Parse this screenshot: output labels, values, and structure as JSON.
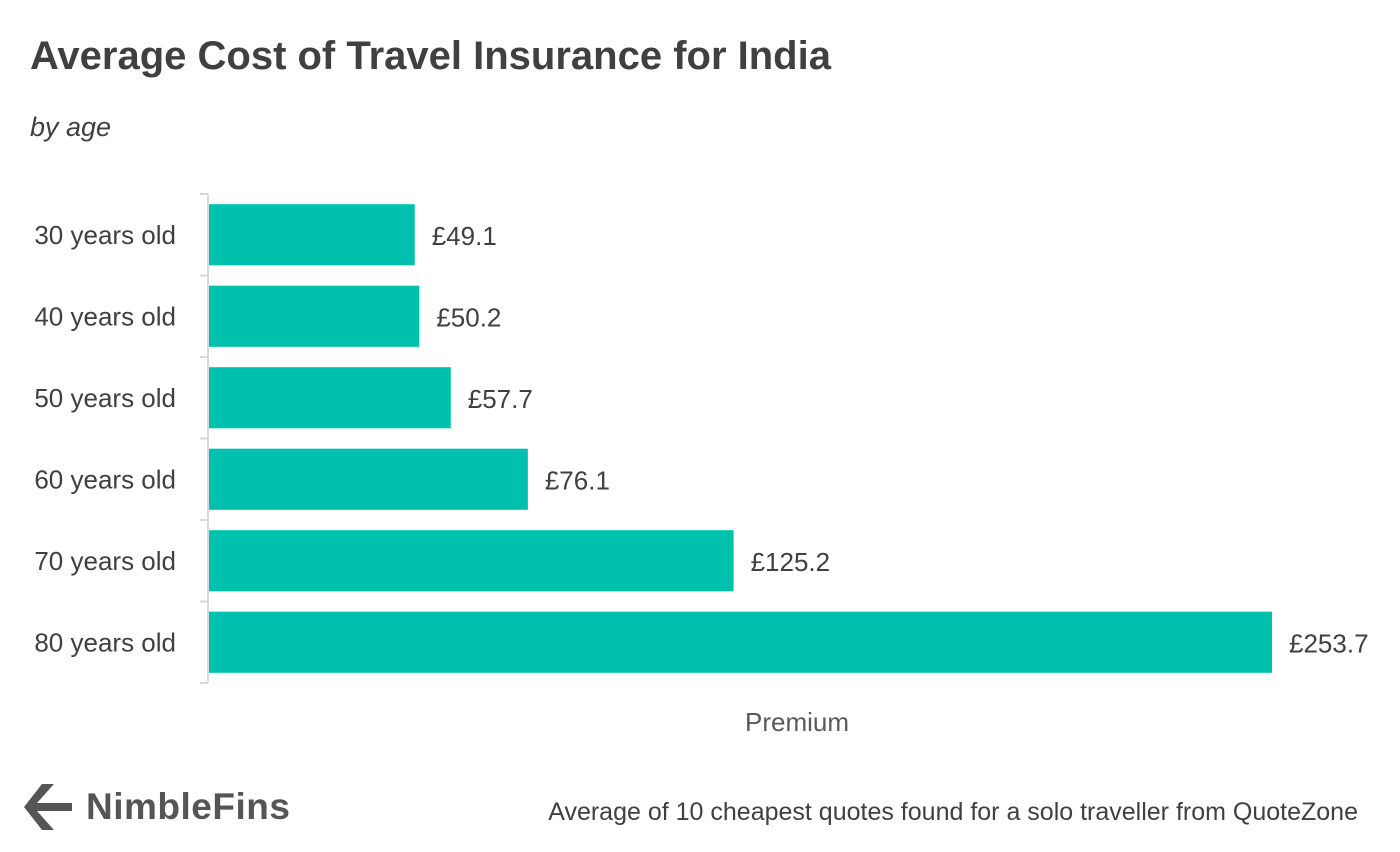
{
  "logo": {
    "brand_name": "NimbleFins",
    "icon": "chevron-left-icon"
  },
  "footnote": "Average of 10 cheapest quotes found for a solo traveller from QuoteZone",
  "colors": {
    "bar": "#00c1ad",
    "text": "#404040",
    "axis": "#d9d9d9"
  },
  "chart_data": {
    "type": "bar",
    "orientation": "horizontal",
    "title": "Average Cost of Travel Insurance for India",
    "subtitle": "by age",
    "xlabel": "Premium",
    "ylabel": "",
    "categories": [
      "30 years old",
      "40 years old",
      "50 years old",
      "60 years old",
      "70 years old",
      "80 years old"
    ],
    "values": [
      49.1,
      50.2,
      57.7,
      76.1,
      125.2,
      253.7
    ],
    "value_labels": [
      "£49.1",
      "£50.2",
      "£57.7",
      "£76.1",
      "£125.2",
      "£253.7"
    ],
    "xlim": [
      0,
      253.7
    ],
    "grid": false,
    "legend": "none"
  }
}
